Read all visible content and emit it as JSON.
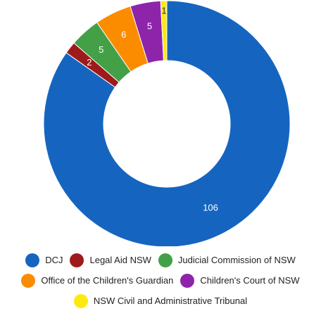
{
  "chart_data": {
    "type": "pie",
    "style": "donut",
    "title": "",
    "legend_position": "bottom",
    "slices": [
      {
        "label": "DCJ",
        "value": 106,
        "color": "#1565c0"
      },
      {
        "label": "Legal Aid NSW",
        "value": 2,
        "color": "#9e1b1b"
      },
      {
        "label": "Judicial Commission of NSW",
        "value": 5,
        "color": "#43a047"
      },
      {
        "label": "Office of the Children's Guardian",
        "value": 6,
        "color": "#fb8c00"
      },
      {
        "label": "Children's Court of NSW",
        "value": 5,
        "color": "#8e24aa"
      },
      {
        "label": "NSW Civil and Administrative Tribunal",
        "value": 1,
        "color": "#fde910"
      }
    ]
  }
}
